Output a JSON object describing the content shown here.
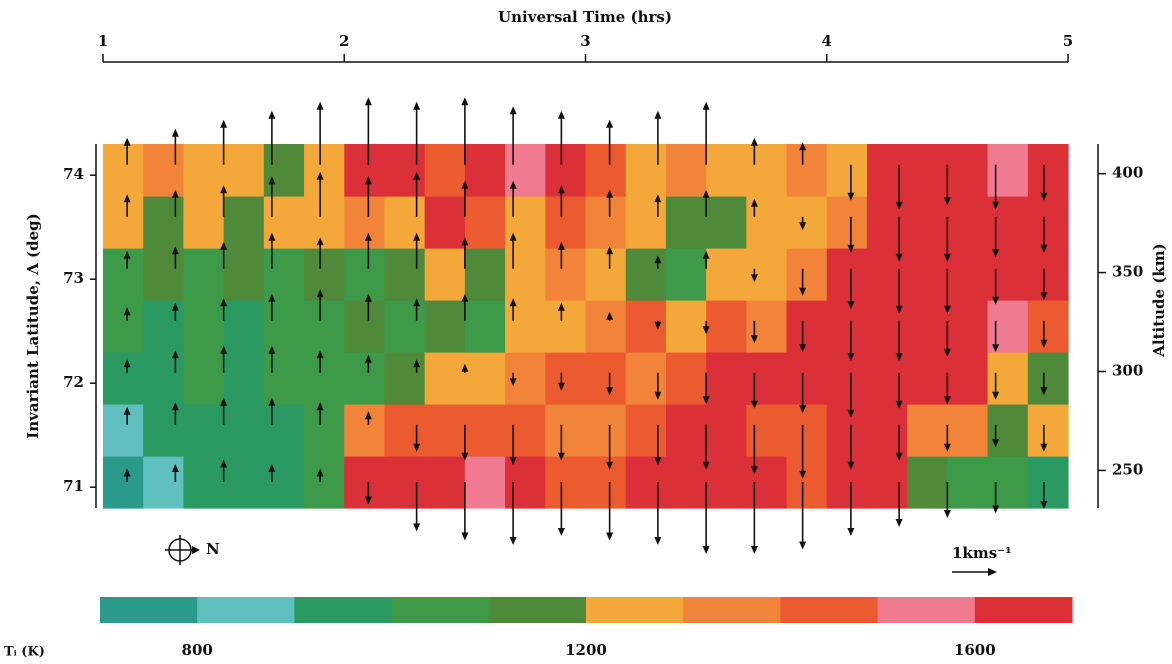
{
  "chart_data": {
    "type": "contour_vector",
    "title": "Universal Time (hrs)",
    "ylabel": "Invariant Latitude, Λ (deg)",
    "y2label": "Altitude (km)",
    "compass_label": "N",
    "vector_scale_label": "1kms⁻¹",
    "xlim": [
      1,
      5
    ],
    "xticks": [
      1,
      2,
      3,
      4,
      5
    ],
    "ylim": [
      70.8,
      74.3
    ],
    "yticks": [
      71,
      72,
      73,
      74
    ],
    "y2lim": [
      231,
      415
    ],
    "y2ticks": [
      250,
      300,
      350,
      400
    ],
    "z": [
      [
        750,
        850,
        950,
        950,
        950,
        1050,
        1650,
        1650,
        1650,
        1550,
        1650,
        1450,
        1450,
        1650,
        1650,
        1650,
        1650,
        1450,
        1650,
        1650,
        1150,
        1050,
        1050,
        950
      ],
      [
        850,
        950,
        950,
        950,
        950,
        1050,
        1350,
        1450,
        1450,
        1450,
        1450,
        1350,
        1350,
        1450,
        1650,
        1650,
        1450,
        1450,
        1650,
        1650,
        1350,
        1350,
        1150,
        1250
      ],
      [
        950,
        950,
        1050,
        950,
        1050,
        1050,
        1050,
        1150,
        1250,
        1250,
        1350,
        1450,
        1450,
        1350,
        1450,
        1650,
        1650,
        1650,
        1650,
        1650,
        1650,
        1650,
        1250,
        1150
      ],
      [
        1050,
        950,
        1050,
        950,
        1050,
        1050,
        1150,
        1050,
        1150,
        1050,
        1250,
        1250,
        1350,
        1450,
        1250,
        1450,
        1350,
        1650,
        1650,
        1650,
        1650,
        1650,
        1550,
        1450
      ],
      [
        1050,
        1150,
        1050,
        1150,
        1050,
        1150,
        1050,
        1150,
        1250,
        1150,
        1250,
        1350,
        1250,
        1150,
        1050,
        1250,
        1250,
        1350,
        1650,
        1650,
        1650,
        1650,
        1650,
        1650
      ],
      [
        1250,
        1150,
        1250,
        1150,
        1250,
        1250,
        1350,
        1250,
        1650,
        1450,
        1250,
        1450,
        1350,
        1250,
        1150,
        1150,
        1250,
        1250,
        1350,
        1650,
        1650,
        1650,
        1650,
        1650
      ],
      [
        1250,
        1350,
        1250,
        1250,
        1150,
        1250,
        1650,
        1650,
        1450,
        1650,
        1550,
        1650,
        1450,
        1250,
        1350,
        1250,
        1250,
        1350,
        1250,
        1650,
        1650,
        1650,
        1550,
        1650
      ]
    ],
    "vectors": {
      "ut": [
        1.1,
        1.3,
        1.5,
        1.7,
        1.9,
        2.1,
        2.3,
        2.5,
        2.7,
        2.9,
        3.1,
        3.3,
        3.5,
        3.7,
        3.9,
        4.1,
        4.3,
        4.5,
        4.7,
        4.9
      ],
      "lat": [
        71.05,
        71.6,
        72.1,
        72.6,
        73.1,
        73.6,
        74.1
      ],
      "v": [
        [
          0.3,
          0.4,
          0.5,
          0.4,
          0.3,
          -0.5,
          -1.1,
          -1.3,
          -1.4,
          -1.2,
          -1.3,
          -1.4,
          -1.6,
          -1.6,
          -1.5,
          -1.2,
          -1.0,
          -0.8,
          -0.7,
          -0.6
        ],
        [
          0.4,
          0.5,
          0.6,
          0.6,
          0.5,
          0.3,
          -0.6,
          -0.8,
          -0.9,
          -0.8,
          -1.0,
          -0.9,
          -1.0,
          -1.1,
          -1.2,
          -1.0,
          -0.8,
          -0.6,
          -0.5,
          -0.6
        ],
        [
          0.3,
          0.5,
          0.6,
          0.6,
          0.5,
          0.4,
          0.3,
          0.2,
          -0.3,
          -0.4,
          -0.5,
          -0.6,
          -0.7,
          -0.8,
          -0.9,
          -1.0,
          -0.8,
          -0.7,
          -0.6,
          -0.5
        ],
        [
          0.3,
          0.4,
          0.5,
          0.6,
          0.7,
          0.6,
          0.5,
          0.6,
          0.5,
          0.4,
          0.2,
          -0.2,
          -0.3,
          -0.5,
          -0.7,
          -0.9,
          -0.9,
          -0.8,
          -0.7,
          -0.6
        ],
        [
          0.4,
          0.5,
          0.6,
          0.8,
          0.7,
          0.8,
          0.8,
          0.7,
          0.8,
          0.6,
          0.5,
          0.3,
          0.4,
          -0.3,
          -0.6,
          -0.9,
          -1.0,
          -1.0,
          -0.8,
          -0.7
        ],
        [
          0.5,
          0.6,
          0.7,
          0.9,
          1.0,
          0.9,
          1.0,
          0.8,
          0.8,
          0.7,
          0.6,
          0.5,
          0.6,
          0.4,
          -0.3,
          -0.8,
          -1.0,
          -1.0,
          -0.9,
          -0.8
        ],
        [
          0.6,
          0.8,
          1.0,
          1.2,
          1.4,
          1.5,
          1.4,
          1.5,
          1.3,
          1.2,
          1.0,
          1.2,
          1.4,
          0.6,
          0.5,
          -0.8,
          -1.0,
          -0.9,
          -1.0,
          -0.8
        ]
      ]
    },
    "colorbar": {
      "label": "Tᵢ (K)",
      "clim": [
        700,
        1700
      ],
      "ticks": [
        800,
        1200,
        1600
      ],
      "colors": [
        "#2a9a8a",
        "#60c0c0",
        "#2a9a62",
        "#3c9a48",
        "#4e8a3a",
        "#f5a83a",
        "#f2843a",
        "#ec5a30",
        "#f07a90",
        "#dc3038"
      ]
    }
  }
}
